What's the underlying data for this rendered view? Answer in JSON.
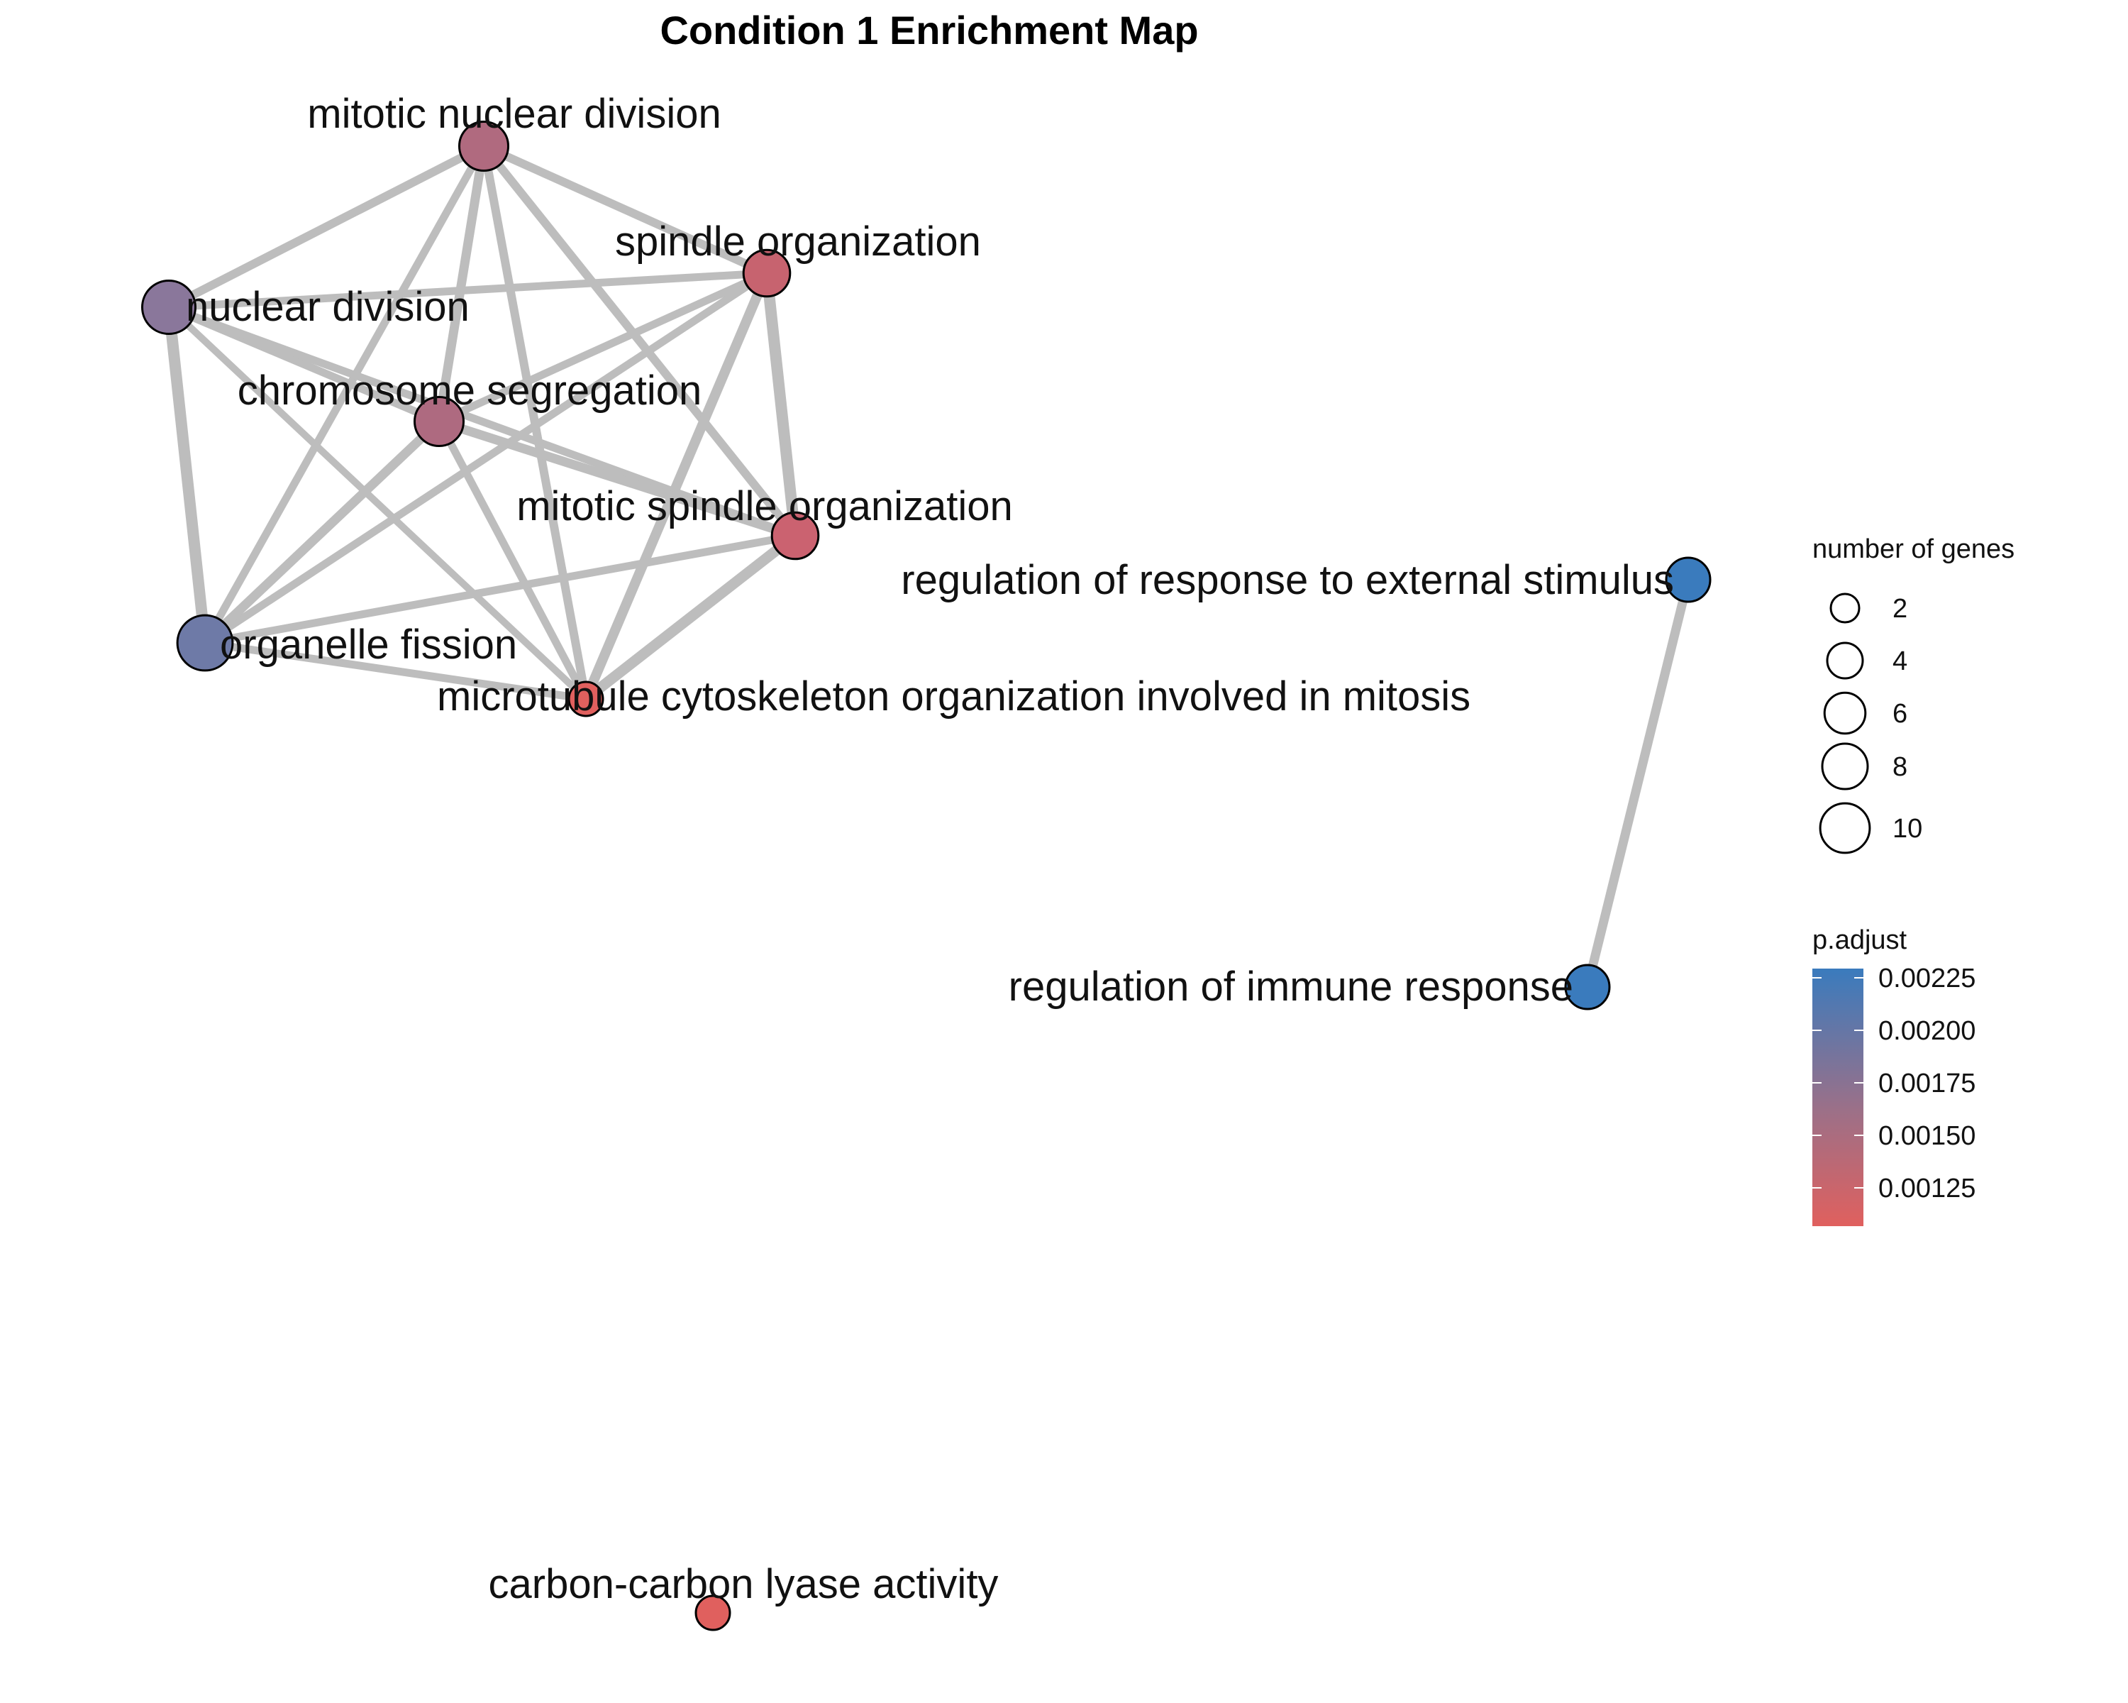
{
  "title": "Condition 1 Enrichment Map",
  "nodes": [
    {
      "id": "mnd",
      "label": "mitotic nuclear division",
      "genes": 7,
      "p_adjust": 0.00162,
      "color": "#b06a7f"
    },
    {
      "id": "so",
      "label": "spindle organization",
      "genes": 6,
      "p_adjust": 0.00138,
      "color": "#c7636f"
    },
    {
      "id": "nd",
      "label": "nuclear division",
      "genes": 9,
      "p_adjust": 0.00192,
      "color": "#8a779b"
    },
    {
      "id": "cs",
      "label": "chromosome segregation",
      "genes": 7,
      "p_adjust": 0.00162,
      "color": "#ae6a80"
    },
    {
      "id": "mso",
      "label": "mitotic spindle organization",
      "genes": 6,
      "p_adjust": 0.0013,
      "color": "#cb6270"
    },
    {
      "id": "of",
      "label": "organelle fission",
      "genes": 10,
      "p_adjust": 0.00205,
      "color": "#6e7aa7"
    },
    {
      "id": "mcomi",
      "label": "microtubule cytoskeleton organization involved in mitosis",
      "genes": 2,
      "p_adjust": 0.0011,
      "color": "#e0605e"
    },
    {
      "id": "rres",
      "label": "regulation of response to external stimulus",
      "genes": 5,
      "p_adjust": 0.00228,
      "color": "#3a7bbd"
    },
    {
      "id": "rir",
      "label": "regulation of immune response",
      "genes": 5,
      "p_adjust": 0.00228,
      "color": "#3a7bbd"
    },
    {
      "id": "ccla",
      "label": "carbon-carbon lyase activity",
      "genes": 2,
      "p_adjust": 0.0011,
      "color": "#e0605e"
    }
  ],
  "edges": [
    {
      "source": "mnd",
      "target": "nd",
      "weight": 0.6
    },
    {
      "source": "mnd",
      "target": "so",
      "weight": 0.6
    },
    {
      "source": "mnd",
      "target": "cs",
      "weight": 0.7
    },
    {
      "source": "mnd",
      "target": "of",
      "weight": 0.5
    },
    {
      "source": "mnd",
      "target": "mcomi",
      "weight": 0.6
    },
    {
      "source": "mnd",
      "target": "mso",
      "weight": 0.6
    },
    {
      "source": "nd",
      "target": "so",
      "weight": 0.5
    },
    {
      "source": "nd",
      "target": "cs",
      "weight": 0.5
    },
    {
      "source": "nd",
      "target": "mso",
      "weight": 0.5
    },
    {
      "source": "nd",
      "target": "of",
      "weight": 1.0
    },
    {
      "source": "nd",
      "target": "mcomi",
      "weight": 0.4
    },
    {
      "source": "so",
      "target": "cs",
      "weight": 0.5
    },
    {
      "source": "so",
      "target": "of",
      "weight": 0.5
    },
    {
      "source": "so",
      "target": "mso",
      "weight": 1.0
    },
    {
      "source": "so",
      "target": "mcomi",
      "weight": 0.8
    },
    {
      "source": "cs",
      "target": "mso",
      "weight": 0.7
    },
    {
      "source": "cs",
      "target": "of",
      "weight": 0.7
    },
    {
      "source": "cs",
      "target": "mcomi",
      "weight": 0.5
    },
    {
      "source": "mso",
      "target": "of",
      "weight": 0.5
    },
    {
      "source": "mso",
      "target": "mcomi",
      "weight": 0.9
    },
    {
      "source": "of",
      "target": "mcomi",
      "weight": 0.5
    },
    {
      "source": "rres",
      "target": "rir",
      "weight": 0.7
    }
  ],
  "legend_size": {
    "title": "number of genes",
    "entries": [
      {
        "label": "2",
        "value": 2
      },
      {
        "label": "4",
        "value": 4
      },
      {
        "label": "6",
        "value": 6
      },
      {
        "label": "8",
        "value": 8
      },
      {
        "label": "10",
        "value": 10
      }
    ]
  },
  "legend_color": {
    "title": "p.adjust",
    "ticks": [
      "0.00225",
      "0.00200",
      "0.00175",
      "0.00150",
      "0.00125"
    ],
    "color_high": "#3a7bbd",
    "color_low": "#e0605e"
  }
}
